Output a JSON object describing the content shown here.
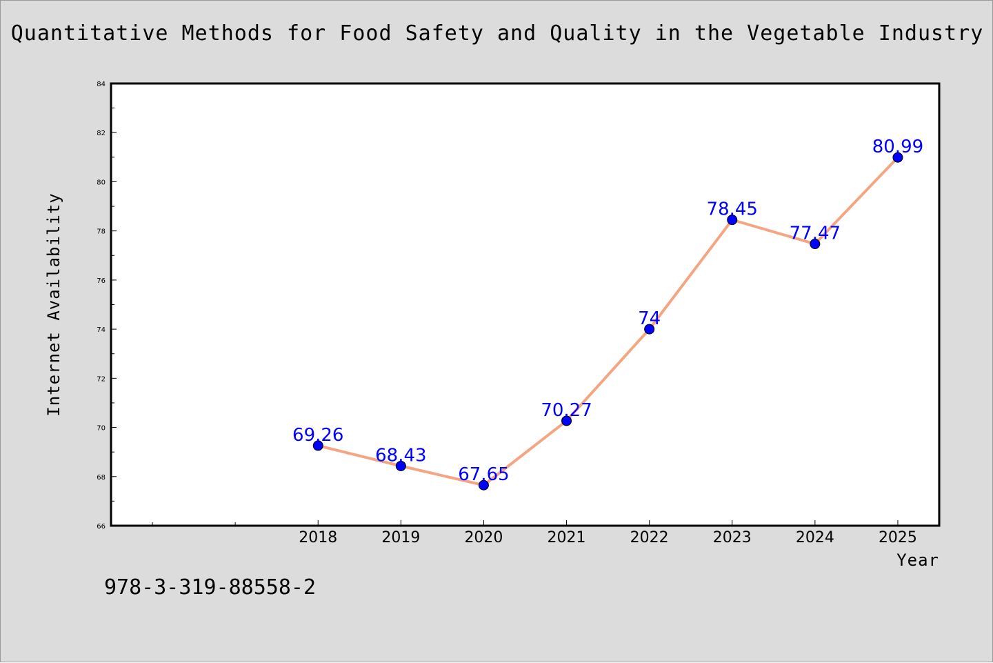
{
  "title": "Quantitative Methods for Food Safety and Quality in the Vegetable Industry",
  "footer_code": "978-3-319-88558-2",
  "colors": {
    "background": "#dcdcdc",
    "plot_area": "#ffffff",
    "line": "#f4a582",
    "marker": "#0000ff",
    "label": "#0000ff"
  },
  "chart_data": {
    "type": "line",
    "title": "Quantitative Methods for Food Safety and Quality in the Vegetable Industry",
    "xlabel": "Year",
    "ylabel": "Internet Availability",
    "categories": [
      "2018",
      "2019",
      "2020",
      "2021",
      "2022",
      "2023",
      "2024",
      "2025"
    ],
    "series": [
      {
        "values": [
          69.26,
          68.43,
          67.65,
          70.27,
          74,
          78.45,
          77.47,
          80.99
        ]
      }
    ],
    "data_labels": [
      "69.26",
      "68.43",
      "67.65",
      "70.27",
      "74",
      "78.45",
      "77.47",
      "80.99"
    ],
    "ylim": [
      66,
      84
    ],
    "yticks": [
      66,
      68,
      70,
      72,
      74,
      76,
      78,
      80,
      82,
      84
    ],
    "ytick_labels": [
      "66",
      "68",
      "70",
      "72",
      "74",
      "76",
      "78",
      "80",
      "82",
      "84"
    ],
    "x_category_span": 10,
    "x_category_offset": 2,
    "grid": false,
    "legend": false
  }
}
